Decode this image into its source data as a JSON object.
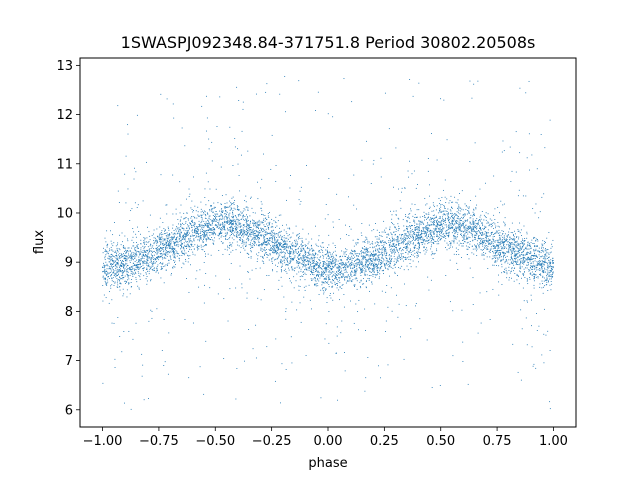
{
  "chart_data": {
    "type": "scatter",
    "title": "1SWASPJ092348.84-371751.8 Period 30802.20508s",
    "xlabel": "phase",
    "ylabel": "flux",
    "xlim": [
      -1.1,
      1.1
    ],
    "ylim": [
      5.65,
      13.15
    ],
    "x_ticks": [
      -1.0,
      -0.75,
      -0.5,
      -0.25,
      0.0,
      0.25,
      0.5,
      0.75,
      1.0
    ],
    "x_tick_labels": [
      "−1.00",
      "−0.75",
      "−0.50",
      "−0.25",
      "0.00",
      "0.25",
      "0.50",
      "0.75",
      "1.00"
    ],
    "y_ticks": [
      6,
      7,
      8,
      9,
      10,
      11,
      12,
      13
    ],
    "y_tick_labels": [
      "6",
      "7",
      "8",
      "9",
      "10",
      "11",
      "12",
      "13"
    ],
    "grid": false,
    "marker_color": "#1f77b4",
    "series": [
      {
        "x": [
          -1.0,
          -0.9,
          -0.8,
          -0.7,
          -0.6,
          -0.5,
          -0.45,
          -0.4,
          -0.3,
          -0.2,
          -0.1,
          0.0,
          0.05,
          0.1,
          0.2,
          0.3,
          0.4,
          0.5,
          0.55,
          0.6,
          0.7,
          0.8,
          0.9,
          1.0
        ],
        "y": [
          8.9,
          8.95,
          9.1,
          9.35,
          9.6,
          9.75,
          9.8,
          9.75,
          9.55,
          9.3,
          9.05,
          8.9,
          8.85,
          8.9,
          9.05,
          9.3,
          9.55,
          9.75,
          9.8,
          9.75,
          9.5,
          9.25,
          9.05,
          8.9
        ]
      }
    ]
  }
}
